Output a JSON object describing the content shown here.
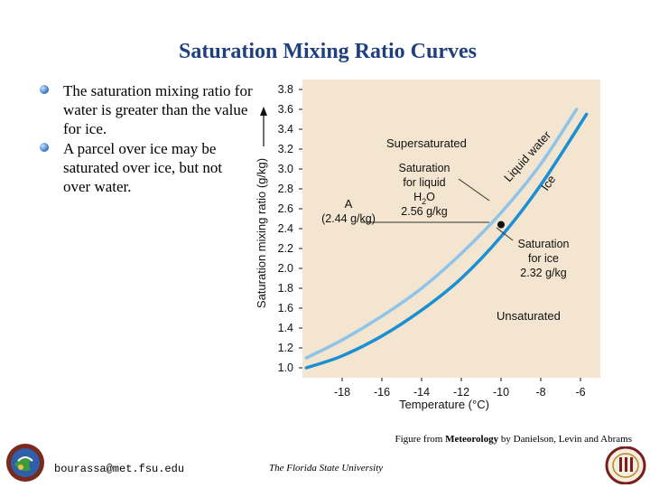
{
  "slide": {
    "title": "Saturation Mixing Ratio Curves",
    "bullets": [
      "The saturation mixing ratio for water is greater than the value for ice.",
      "A parcel over ice may be saturated over ice, but not over water."
    ],
    "caption_prefix": "Figure from ",
    "caption_book": "Meteorology",
    "caption_suffix": " by Danielson, Levin and Abrams",
    "footer_email": "bourassa@met.fsu.edu",
    "footer_university": "The Florida State University"
  },
  "colors": {
    "title": "#1f3f7f",
    "plot_bg": "#f3e5cf",
    "liquid_water": "#8ec4ea",
    "ice": "#1b8fd3",
    "bullet": "#2f6fc0"
  },
  "chart_data": {
    "type": "line",
    "xlabel": "Temperature (°C)",
    "ylabel": "Saturation mixing ratio (g/kg)",
    "xlim": [
      -20,
      -5
    ],
    "ylim": [
      0.9,
      3.9
    ],
    "x_ticks": [
      -18,
      -16,
      -14,
      -12,
      -10,
      -8,
      -6
    ],
    "y_ticks": [
      1.0,
      1.2,
      1.4,
      1.6,
      1.8,
      2.0,
      2.2,
      2.4,
      2.6,
      2.8,
      3.0,
      3.2,
      3.4,
      3.6,
      3.8
    ],
    "y_tick_labels": [
      "1.0",
      "1.2",
      "1.4",
      "1.6",
      "1.8",
      "2.0",
      "2.2",
      "2.4",
      "2.6",
      "2.8",
      "3.0",
      "3.2",
      "3.4",
      "3.6",
      "3.8"
    ],
    "series": [
      {
        "name": "Liquid water",
        "x": [
          -19.8,
          -18,
          -16,
          -14,
          -12,
          -10,
          -8,
          -6.2
        ],
        "values": [
          1.1,
          1.28,
          1.52,
          1.8,
          2.15,
          2.56,
          3.05,
          3.6
        ]
      },
      {
        "name": "Ice",
        "x": [
          -19.8,
          -18,
          -16,
          -14,
          -12,
          -10,
          -8,
          -5.7
        ],
        "values": [
          1.0,
          1.12,
          1.32,
          1.58,
          1.9,
          2.32,
          2.84,
          3.55
        ]
      }
    ],
    "point": {
      "label": "A",
      "x": -10,
      "y": 2.44
    },
    "annotations": {
      "supersaturated": "Supersaturated",
      "unsaturated": "Unsaturated",
      "liquid_water_curve": "Liquid water",
      "ice_curve": "Ice",
      "sat_liquid_1": "Saturation",
      "sat_liquid_2": "for liquid",
      "sat_liquid_3": "H",
      "sat_liquid_3_sub": "2",
      "sat_liquid_3_end": "O",
      "sat_liquid_4": "2.56 g/kg",
      "point_label": "A",
      "point_value": "(2.44 g/kg)",
      "sat_ice_1": "Saturation",
      "sat_ice_2": "for ice",
      "sat_ice_3": "2.32 g/kg"
    }
  }
}
